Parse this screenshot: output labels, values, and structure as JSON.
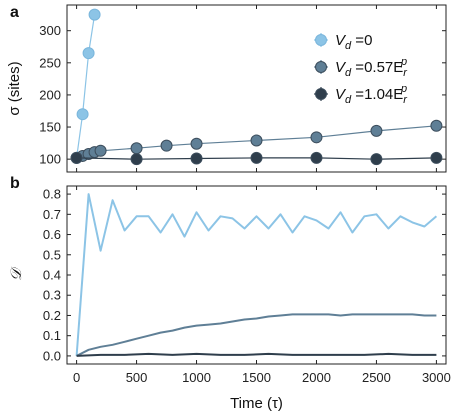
{
  "colors": {
    "light": "#8cc4e6",
    "mid": "#5f7f96",
    "dark": "#2f3e4c"
  },
  "chart_data": [
    {
      "type": "line",
      "panel": "a",
      "xlabel": "",
      "ylabel": "σ (sites)",
      "xlim": [
        -80,
        3080
      ],
      "ylim": [
        80,
        340
      ],
      "xticks": [
        0,
        500,
        1000,
        1500,
        2000,
        2500,
        3000
      ],
      "yticks": [
        100,
        150,
        200,
        250,
        300
      ],
      "legend_position": "upper right",
      "series": [
        {
          "name": "V_d = 0",
          "legend_main": "V",
          "legend_sub": "d",
          "legend_rest": " =0",
          "legend_sup": "",
          "legend_rest_sub": "",
          "color": "light",
          "x": [
            0,
            50,
            100,
            150
          ],
          "y": [
            102,
            170,
            265,
            325
          ]
        },
        {
          "name": "V_d = 0.57E_r^p",
          "legend_main": "V",
          "legend_sub": "d",
          "legend_rest": " =0.57E",
          "legend_sup": "p",
          "legend_rest_sub": "r",
          "color": "mid",
          "x": [
            0,
            50,
            100,
            150,
            200,
            500,
            750,
            1000,
            1500,
            2000,
            2500,
            3000
          ],
          "y": [
            102,
            105,
            108,
            111,
            113,
            117,
            121,
            124,
            129,
            134,
            144,
            152
          ]
        },
        {
          "name": "V_d = 1.04E_r^p",
          "legend_main": "V",
          "legend_sub": "d",
          "legend_rest": " =1.04E",
          "legend_sup": "p",
          "legend_rest_sub": "r",
          "color": "dark",
          "x": [
            0,
            500,
            1000,
            1500,
            2000,
            2500,
            3000
          ],
          "y": [
            102,
            100,
            101,
            102,
            102,
            100,
            102
          ]
        }
      ]
    },
    {
      "type": "line",
      "panel": "b",
      "xlabel": "Time (τ)",
      "ylabel": "𝒟",
      "xlim": [
        -80,
        3080
      ],
      "ylim": [
        -0.04,
        0.84
      ],
      "xticks": [
        0,
        500,
        1000,
        1500,
        2000,
        2500,
        3000
      ],
      "yticks": [
        0.0,
        0.1,
        0.2,
        0.3,
        0.4,
        0.5,
        0.6,
        0.7,
        0.8
      ],
      "series": [
        {
          "color": "light",
          "x": [
            0,
            100,
            200,
            300,
            400,
            500,
            600,
            700,
            800,
            900,
            1000,
            1100,
            1200,
            1300,
            1400,
            1500,
            1600,
            1700,
            1800,
            1900,
            2000,
            2100,
            2200,
            2300,
            2400,
            2500,
            2600,
            2700,
            2800,
            2900,
            3000
          ],
          "y": [
            0.0,
            0.8,
            0.52,
            0.77,
            0.62,
            0.69,
            0.69,
            0.61,
            0.7,
            0.59,
            0.71,
            0.62,
            0.69,
            0.68,
            0.63,
            0.69,
            0.63,
            0.7,
            0.61,
            0.69,
            0.67,
            0.63,
            0.71,
            0.61,
            0.69,
            0.7,
            0.63,
            0.69,
            0.66,
            0.64,
            0.69
          ]
        },
        {
          "color": "mid",
          "x": [
            0,
            100,
            200,
            300,
            400,
            500,
            600,
            700,
            800,
            900,
            1000,
            1100,
            1200,
            1300,
            1400,
            1500,
            1600,
            1700,
            1800,
            1900,
            2000,
            2100,
            2200,
            2300,
            2400,
            2500,
            2600,
            2700,
            2800,
            2900,
            3000
          ],
          "y": [
            0.0,
            0.03,
            0.045,
            0.055,
            0.07,
            0.085,
            0.1,
            0.115,
            0.125,
            0.14,
            0.15,
            0.155,
            0.16,
            0.17,
            0.18,
            0.185,
            0.195,
            0.2,
            0.205,
            0.205,
            0.205,
            0.205,
            0.2,
            0.205,
            0.205,
            0.205,
            0.205,
            0.205,
            0.205,
            0.2,
            0.2
          ]
        },
        {
          "color": "dark",
          "x": [
            0,
            200,
            400,
            600,
            800,
            1000,
            1200,
            1400,
            1600,
            1800,
            2000,
            2200,
            2400,
            2600,
            2800,
            3000
          ],
          "y": [
            0.0,
            0.005,
            0.005,
            0.01,
            0.005,
            0.01,
            0.005,
            0.005,
            0.01,
            0.005,
            0.005,
            0.005,
            0.005,
            0.01,
            0.005,
            0.005
          ]
        }
      ]
    }
  ]
}
